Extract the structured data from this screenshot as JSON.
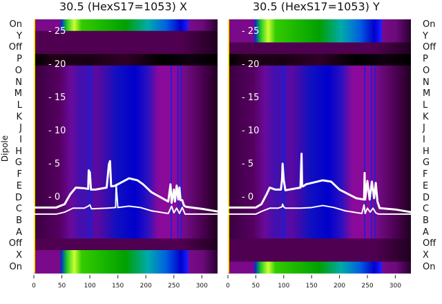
{
  "chart_data": [
    {
      "type": "heatmap",
      "title": "30.5 (HexS17=1053) X",
      "ylabel": "Dipole",
      "axis": "X",
      "row_labels": [
        "On",
        "Y",
        "Off",
        "P",
        "O",
        "N",
        "M",
        "L",
        "K",
        "J",
        "I",
        "H",
        "G",
        "F",
        "E",
        "D",
        "C",
        "B",
        "A",
        "Off",
        "X",
        "On"
      ],
      "xlim": [
        0,
        328
      ],
      "xticks": [
        0,
        50,
        100,
        150,
        200,
        250,
        300
      ],
      "inner_ylim": [
        -11.5,
        26.7
      ],
      "inner_yticks": [
        0,
        5,
        10,
        15,
        20,
        25
      ],
      "series": [
        {
          "name": "upper",
          "x": [
            0,
            40,
            55,
            65,
            75,
            90,
            97,
            98,
            100,
            102,
            110,
            130,
            134,
            136,
            138,
            140,
            146,
            150,
            170,
            185,
            195,
            210,
            240,
            244,
            246,
            250,
            252,
            255,
            258,
            260,
            262,
            265,
            268,
            272,
            300,
            328
          ],
          "y": [
            -1.7,
            -1.7,
            -1.2,
            0.3,
            1.3,
            1.2,
            1.1,
            3.9,
            3.6,
            1.0,
            1.0,
            1.3,
            4.8,
            5.3,
            1.5,
            1.5,
            1.6,
            1.8,
            2.7,
            2.4,
            1.8,
            0.6,
            -0.8,
            1.8,
            -1.0,
            1.0,
            -0.8,
            1.6,
            -0.5,
            1.3,
            -0.6,
            -0.6,
            -1.4,
            -1.6,
            -1.9,
            -2.3
          ]
        },
        {
          "name": "lower",
          "x": [
            0,
            40,
            55,
            70,
            90,
            97,
            100,
            103,
            130,
            146,
            147,
            150,
            170,
            190,
            210,
            240,
            246,
            250,
            255,
            260,
            265,
            270,
            300,
            328
          ],
          "y": [
            -2.7,
            -2.7,
            -2.4,
            -1.8,
            -1.8,
            -1.5,
            -1.3,
            -1.9,
            -1.8,
            -1.7,
            1.8,
            -1.7,
            -1.5,
            -1.7,
            -2.2,
            -2.6,
            -1.5,
            -2.5,
            -1.8,
            -2.6,
            -1.7,
            -2.7,
            -2.7,
            -2.7
          ]
        }
      ]
    },
    {
      "type": "heatmap",
      "title": "30.5 (HexS17=1053) Y",
      "axis": "Y",
      "row_labels": [
        "On",
        "Y",
        "Off",
        "P",
        "O",
        "N",
        "M",
        "L",
        "K",
        "J",
        "I",
        "H",
        "G",
        "F",
        "E",
        "D",
        "C",
        "B",
        "A",
        "Off",
        "X",
        "On"
      ],
      "xlim": [
        0,
        328
      ],
      "xticks": [
        0,
        50,
        100,
        150,
        200,
        250,
        300
      ],
      "inner_ylim": [
        -11.5,
        26.7
      ],
      "inner_yticks": [
        0,
        5,
        10,
        15,
        20,
        25
      ],
      "series": [
        {
          "name": "upper",
          "x": [
            0,
            50,
            60,
            70,
            75,
            85,
            95,
            97,
            98,
            100,
            103,
            110,
            130,
            132,
            133,
            135,
            140,
            150,
            170,
            185,
            200,
            230,
            244,
            245,
            246,
            250,
            254,
            258,
            262,
            265,
            268,
            272,
            300,
            328
          ],
          "y": [
            -1.7,
            -1.7,
            -1.2,
            0.4,
            1.3,
            1.0,
            1.0,
            2.5,
            4.9,
            2.5,
            0.9,
            1.0,
            1.3,
            6.4,
            1.5,
            1.5,
            1.8,
            2.0,
            2.4,
            2.2,
            1.0,
            -0.3,
            -0.5,
            3.5,
            -0.5,
            2.3,
            -0.5,
            2.2,
            -0.3,
            2.0,
            -0.8,
            -1.8,
            -2.0,
            -2.4
          ]
        },
        {
          "name": "lower",
          "x": [
            0,
            50,
            60,
            75,
            90,
            97,
            98,
            100,
            103,
            130,
            150,
            170,
            190,
            210,
            240,
            244,
            246,
            250,
            255,
            260,
            265,
            270,
            300,
            328
          ],
          "y": [
            -2.7,
            -2.7,
            -2.3,
            -1.8,
            -1.8,
            -1.6,
            -1.2,
            -1.6,
            -1.8,
            -1.8,
            -1.7,
            -1.4,
            -1.7,
            -2.2,
            -2.6,
            -1.3,
            -2.6,
            -1.8,
            -2.4,
            -1.8,
            -2.5,
            -2.7,
            -2.7,
            -2.7
          ]
        }
      ]
    }
  ],
  "colors": {
    "line": "#ffffff",
    "axis_marker": "#ffe600"
  }
}
